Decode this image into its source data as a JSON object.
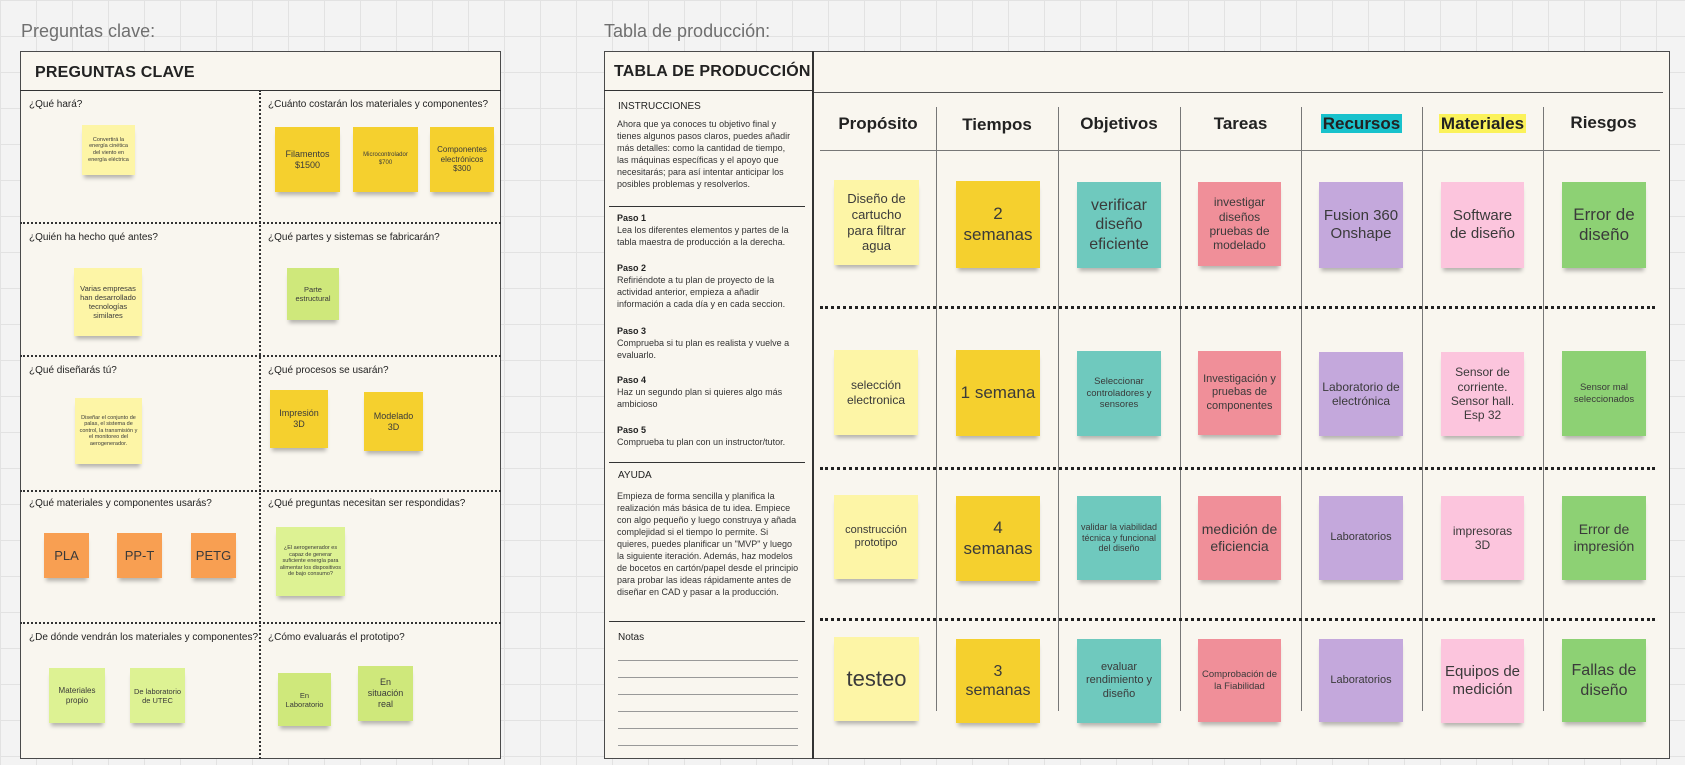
{
  "left_label": "Preguntas clave:",
  "right_label": "Tabla de producción:",
  "left_frame": {
    "title": "PREGUNTAS CLAVE",
    "questions": {
      "q1": "¿Qué hará?",
      "q2": "¿Cuánto costarán los materiales y componentes?",
      "q3": "¿Quién ha hecho qué antes?",
      "q4": "¿Qué partes y sistemas se fabricarán?",
      "q5": "¿Qué diseñarás tú?",
      "q6": "¿Qué procesos se usarán?",
      "q7": "¿Qué materiales y componentes usarás?",
      "q8": "¿Qué preguntas necesitan ser respondidas?",
      "q9": "¿De dónde vendrán los materiales y componentes?",
      "q10": "¿Cómo evaluarás el prototipo?"
    },
    "notes": {
      "hara": "Convertirá la energía cinética del viento en energía eléctrica",
      "filamentos": "Filamentos $1500",
      "micro": "Microcontrolador $700",
      "componentes": "Componentes electrónicos $300",
      "varias": "Varias empresas han desarrollado tecnologías similares",
      "parte": "Parte estructural",
      "disenar": "Diseñar el conjunto de palas, el sistema de control, la transmisión y el monitoreo del aerogenerador.",
      "impresion": "Impresión 3D",
      "modelado": "Modelado 3D",
      "pla": "PLA",
      "ppt": "PP-T",
      "petg": "PETG",
      "pregunta": "¿El aerogenerador es capaz de generar suficiente energía para alimentar los dispositivos de bajo consumo?",
      "materiales_propio": "Materiales propio",
      "lab_utec": "De laboratorio de UTEC",
      "en_lab": "En Laboratorio",
      "en_situacion": "En situación real"
    }
  },
  "right_frame": {
    "title": "TABLA DE PRODUCCIÓN",
    "instructions_title": "INSTRUCCIONES",
    "instructions_text": "Ahora que ya conoces tu objetivo final y tienes algunos pasos claros, puedes añadir más detalles: como la cantidad de tiempo, las máquinas específicas y el apoyo que necesitarás; para así intentar anticipar los posibles problemas y resolverlos.",
    "steps": [
      {
        "title": "Paso 1",
        "text": "Lea los diferentes elementos y partes de la tabla maestra de producción a la derecha."
      },
      {
        "title": "Paso 2",
        "text": "Refiriéndote a tu plan de proyecto de la actividad anterior, empieza a añadir información a cada día y en cada seccion."
      },
      {
        "title": "Paso 3",
        "text": "Comprueba si tu plan es realista y vuelve a evaluarlo."
      },
      {
        "title": "Paso 4",
        "text": "Haz un segundo plan si quieres algo más ambicioso"
      },
      {
        "title": "Paso 5",
        "text": "Comprueba tu plan con un instructor/tutor."
      }
    ],
    "help_title": "AYUDA",
    "help_text": "Empieza de forma sencilla y planifica la realización más básica de tu idea. Empiece con algo pequeño y luego construya y añada complejidad si el tiempo lo permite. Si quieres, puedes planificar un \"MVP\" y luego la siguiente iteración. Además, haz modelos de bocetos en cartón/papel desde el principio para probar las ideas rápidamente antes de diseñar en CAD y pasar a la producción.",
    "notes_title": "Notas",
    "columns": [
      "Propósito",
      "Tiempos",
      "Objetivos",
      "Tareas",
      "Recursos",
      "Materiales",
      "Riesgos"
    ],
    "rows": [
      [
        "Diseño de cartucho para  filtrar agua",
        "2 semanas",
        "verificar diseño eficiente",
        "investigar diseños pruebas de modelado",
        "Fusion 360 Onshape",
        "Software de diseño",
        "Error de diseño"
      ],
      [
        "selección electronica",
        "1 semana",
        "Seleccionar controladores y sensores",
        "Investigación y pruebas de componentes",
        "Laboratorio de electrónica",
        "Sensor de corriente. Sensor hall. Esp 32",
        "Sensor mal seleccionados"
      ],
      [
        "construcción prototipo",
        "4 semanas",
        "validar la viabilidad técnica y funcional del diseño",
        "medición de eficiencia",
        "Laboratorios",
        "impresoras 3D",
        "Error de impresión"
      ],
      [
        "testeo",
        "3 semanas",
        "evaluar rendimiento y diseño",
        "Comprobación de la Fiabilidad",
        "Laboratorios",
        "Equipos de medición",
        "Fallas de diseño"
      ]
    ]
  }
}
